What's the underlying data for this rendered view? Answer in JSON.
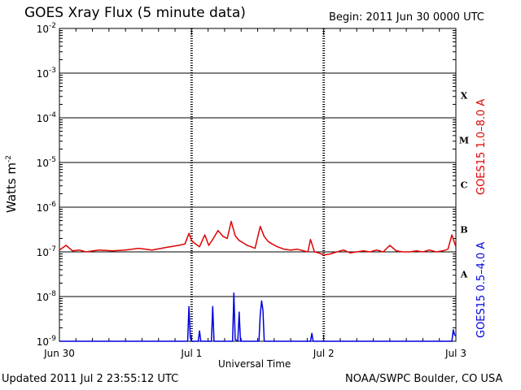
{
  "header": {
    "title": "GOES Xray Flux (5 minute data)",
    "begin": "Begin:  2011 Jun 30 0000 UTC"
  },
  "footer": {
    "updated": "Updated 2011 Jul  2 23:55:12 UTC",
    "credit": "NOAA/SWPC Boulder, CO USA"
  },
  "channels": {
    "long": "GOES15 1.0–8.0 A",
    "short": "GOES15 0.5–4.0 A"
  },
  "colors": {
    "long": "#e00000",
    "short": "#0000e0",
    "axis": "#000000"
  },
  "chart_data": {
    "type": "line",
    "title": "GOES Xray Flux (5 minute data)",
    "xlabel": "Universal Time",
    "ylabel": "Watts m-2",
    "yscale": "log",
    "ylim": [
      1e-09,
      0.01
    ],
    "xlim": [
      0,
      3
    ],
    "x_ticks": [
      {
        "value": 0,
        "label": "Jun 30"
      },
      {
        "value": 1,
        "label": "Jul 1"
      },
      {
        "value": 2,
        "label": "Jul 2"
      },
      {
        "value": 3,
        "label": "Jul 3"
      }
    ],
    "y_ticks": [
      {
        "exp": -9,
        "label": "10",
        "sup": "-9"
      },
      {
        "exp": -8,
        "label": "10",
        "sup": "-8"
      },
      {
        "exp": -7,
        "label": "10",
        "sup": "-7"
      },
      {
        "exp": -6,
        "label": "10",
        "sup": "-6"
      },
      {
        "exp": -5,
        "label": "10",
        "sup": "-5"
      },
      {
        "exp": -4,
        "label": "10",
        "sup": "-4"
      },
      {
        "exp": -3,
        "label": "10",
        "sup": "-3"
      },
      {
        "exp": -2,
        "label": "10",
        "sup": "-2"
      }
    ],
    "flare_classes": [
      {
        "label": "A",
        "exp": -7.5
      },
      {
        "label": "B",
        "exp": -6.5
      },
      {
        "label": "C",
        "exp": -5.5
      },
      {
        "label": "M",
        "exp": -4.5
      },
      {
        "label": "X",
        "exp": -3.5
      }
    ],
    "grid": true,
    "series": [
      {
        "name": "GOES15 1.0–8.0 A",
        "color": "#e00000",
        "x": [
          0,
          0.05,
          0.1,
          0.15,
          0.2,
          0.3,
          0.4,
          0.5,
          0.6,
          0.7,
          0.8,
          0.9,
          0.95,
          0.98,
          1.0,
          1.03,
          1.06,
          1.1,
          1.13,
          1.16,
          1.2,
          1.24,
          1.27,
          1.3,
          1.33,
          1.36,
          1.39,
          1.42,
          1.45,
          1.48,
          1.52,
          1.55,
          1.58,
          1.61,
          1.65,
          1.7,
          1.75,
          1.8,
          1.85,
          1.88,
          1.9,
          1.93,
          1.96,
          2.0,
          2.05,
          2.1,
          2.15,
          2.2,
          2.25,
          2.3,
          2.35,
          2.4,
          2.45,
          2.5,
          2.55,
          2.6,
          2.65,
          2.7,
          2.75,
          2.8,
          2.85,
          2.9,
          2.94,
          2.97,
          3.0
        ],
        "values": [
          1.1e-07,
          1.4e-07,
          1.05e-07,
          1.1e-07,
          1e-07,
          1.1e-07,
          1.05e-07,
          1.1e-07,
          1.2e-07,
          1.1e-07,
          1.25e-07,
          1.4e-07,
          1.5e-07,
          2.6e-07,
          1.8e-07,
          1.5e-07,
          1.3e-07,
          2.4e-07,
          1.4e-07,
          1.9e-07,
          3e-07,
          2.2e-07,
          2e-07,
          4.8e-07,
          2.3e-07,
          1.8e-07,
          1.6e-07,
          1.4e-07,
          1.3e-07,
          1.2e-07,
          3.7e-07,
          2.2e-07,
          1.7e-07,
          1.5e-07,
          1.3e-07,
          1.15e-07,
          1.1e-07,
          1.15e-07,
          1.05e-07,
          1e-07,
          1.9e-07,
          1e-07,
          9.5e-08,
          8.5e-08,
          9e-08,
          1e-07,
          1.1e-07,
          9.5e-08,
          1e-07,
          1.05e-07,
          1e-07,
          1.1e-07,
          1e-07,
          1.4e-07,
          1.05e-07,
          1e-07,
          1e-07,
          1.05e-07,
          1e-07,
          1.1e-07,
          1e-07,
          1.05e-07,
          1.15e-07,
          2.4e-07,
          1.3e-07
        ]
      },
      {
        "name": "GOES15 0.5–4.0 A",
        "color": "#0000e0",
        "x": [
          0,
          0.97,
          0.98,
          0.99,
          1.0,
          1.05,
          1.06,
          1.07,
          1.15,
          1.16,
          1.17,
          1.31,
          1.32,
          1.33,
          1.35,
          1.36,
          1.37,
          1.51,
          1.52,
          1.53,
          1.54,
          1.55,
          1.9,
          1.91,
          1.92,
          2.97,
          2.98,
          2.99,
          3.0
        ],
        "values": [
          1e-09,
          1e-09,
          6e-09,
          1.2e-09,
          1e-09,
          1e-09,
          1.7e-09,
          1e-09,
          1e-09,
          6e-09,
          1e-09,
          1e-09,
          1.2e-08,
          1.1e-09,
          1e-09,
          4.5e-09,
          1e-09,
          1e-09,
          4e-09,
          8e-09,
          5e-09,
          1e-09,
          1e-09,
          1.5e-09,
          1e-09,
          1e-09,
          1.8e-09,
          1.4e-09,
          1.3e-09
        ]
      }
    ]
  }
}
